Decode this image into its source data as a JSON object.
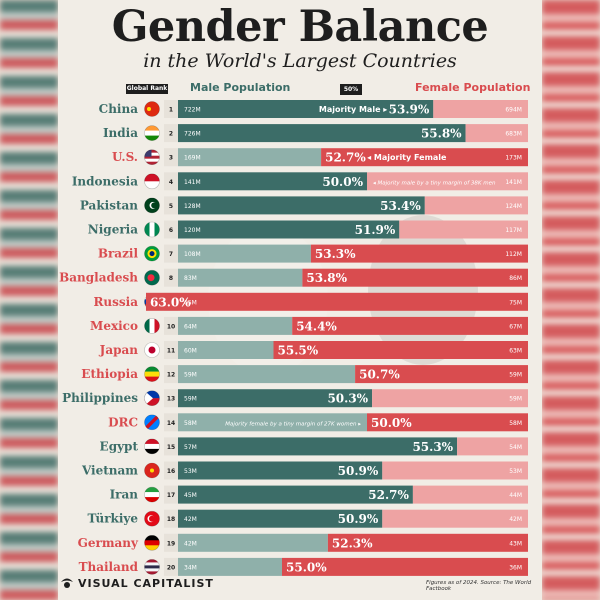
{
  "header": {
    "title": "Gender Balance",
    "subtitle": "in the World's Largest Countries",
    "rank_label": "Global Rank",
    "male_label": "Male Population",
    "mid_label": "50%",
    "female_label": "Female Population"
  },
  "colors": {
    "male": "#3c6d68",
    "male_light": "#8fb0aa",
    "female": "#d94c4f",
    "female_light": "#eea3a3",
    "male_text": "#3c6d68",
    "female_text": "#d94c4f"
  },
  "footer": {
    "brand": "VISUAL CAPITALIST",
    "note": "Figures as of 2024. Source: The World Factbook"
  },
  "chart_data": {
    "type": "bar",
    "title": "Gender Balance",
    "subtitle": "in the World's Largest Countries",
    "categories": [
      "China",
      "India",
      "U.S.",
      "Indonesia",
      "Pakistan",
      "Nigeria",
      "Brazil",
      "Bangladesh",
      "Russia",
      "Mexico",
      "Japan",
      "Ethiopia",
      "Philippines",
      "DRC",
      "Egypt",
      "Vietnam",
      "Iran",
      "Türkiye",
      "Germany",
      "Thailand"
    ],
    "rows": [
      {
        "rank": "1",
        "country": "China",
        "male": "722M",
        "female": "694M",
        "pct": "53.9%",
        "majority": "male",
        "flag": "flag-china"
      },
      {
        "rank": "2",
        "country": "India",
        "male": "726M",
        "female": "683M",
        "pct": "55.8%",
        "majority": "male",
        "flag": "flag-india"
      },
      {
        "rank": "3",
        "country": "U.S.",
        "male": "169M",
        "female": "173M",
        "pct": "52.7%",
        "majority": "female",
        "flag": "flag-us"
      },
      {
        "rank": "4",
        "country": "Indonesia",
        "male": "141M",
        "female": "141M",
        "pct": "50.0%",
        "majority": "male",
        "flag": "flag-indonesia"
      },
      {
        "rank": "5",
        "country": "Pakistan",
        "male": "128M",
        "female": "124M",
        "pct": "53.4%",
        "majority": "male",
        "flag": "flag-pakistan"
      },
      {
        "rank": "6",
        "country": "Nigeria",
        "male": "120M",
        "female": "117M",
        "pct": "51.9%",
        "majority": "male",
        "flag": "flag-nigeria"
      },
      {
        "rank": "7",
        "country": "Brazil",
        "male": "108M",
        "female": "112M",
        "pct": "53.3%",
        "majority": "female",
        "flag": "flag-brazil"
      },
      {
        "rank": "8",
        "country": "Bangladesh",
        "male": "83M",
        "female": "86M",
        "pct": "53.8%",
        "majority": "female",
        "flag": "flag-bangladesh"
      },
      {
        "rank": "9",
        "country": "Russia",
        "male": "65M",
        "female": "75M",
        "pct": "63.0%",
        "majority": "female",
        "flag": "flag-russia"
      },
      {
        "rank": "10",
        "country": "Mexico",
        "male": "64M",
        "female": "67M",
        "pct": "54.4%",
        "majority": "female",
        "flag": "flag-mexico"
      },
      {
        "rank": "11",
        "country": "Japan",
        "male": "60M",
        "female": "63M",
        "pct": "55.5%",
        "majority": "female",
        "flag": "flag-japan"
      },
      {
        "rank": "12",
        "country": "Ethiopia",
        "male": "59M",
        "female": "59M",
        "pct": "50.7%",
        "majority": "female",
        "flag": "flag-ethiopia"
      },
      {
        "rank": "13",
        "country": "Philippines",
        "male": "59M",
        "female": "59M",
        "pct": "50.3%",
        "majority": "male",
        "flag": "flag-philippines"
      },
      {
        "rank": "14",
        "country": "DRC",
        "male": "58M",
        "female": "58M",
        "pct": "50.0%",
        "majority": "female",
        "flag": "flag-drc"
      },
      {
        "rank": "15",
        "country": "Egypt",
        "male": "57M",
        "female": "54M",
        "pct": "55.3%",
        "majority": "male",
        "flag": "flag-egypt"
      },
      {
        "rank": "16",
        "country": "Vietnam",
        "male": "53M",
        "female": "53M",
        "pct": "50.9%",
        "majority": "male",
        "flag": "flag-vietnam"
      },
      {
        "rank": "17",
        "country": "Iran",
        "male": "45M",
        "female": "44M",
        "pct": "52.7%",
        "majority": "male",
        "flag": "flag-iran"
      },
      {
        "rank": "18",
        "country": "Türkiye",
        "male": "42M",
        "female": "42M",
        "pct": "50.9%",
        "majority": "male",
        "flag": "flag-turkiye"
      },
      {
        "rank": "19",
        "country": "Germany",
        "male": "42M",
        "female": "43M",
        "pct": "52.3%",
        "majority": "female",
        "flag": "flag-germany"
      },
      {
        "rank": "20",
        "country": "Thailand",
        "male": "34M",
        "female": "36M",
        "pct": "55.0%",
        "majority": "female",
        "flag": "flag-thailand"
      }
    ],
    "annotations": [
      {
        "row": 0,
        "text": "Majority Male ▸",
        "side": "male"
      },
      {
        "row": 2,
        "text": "◂ Majority Female",
        "side": "female"
      },
      {
        "row": 3,
        "text": "◂ Majority male by a tiny margin of 38K men",
        "side": "female",
        "small": true
      },
      {
        "row": 13,
        "text": "Majority female by a tiny margin of 27K women ▸",
        "side": "male",
        "small": true
      }
    ]
  }
}
